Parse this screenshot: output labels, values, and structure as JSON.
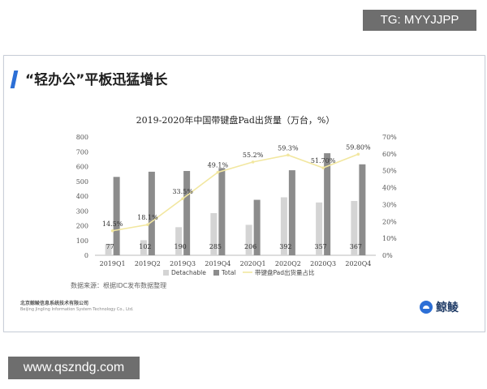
{
  "overlay": {
    "top_tag": "TG: MYYJJPP",
    "bottom_tag": "www.qszndg.com"
  },
  "slide": {
    "title": "“轻办公”平板迅猛增长",
    "source": "数据来源：根据IDC发布数据整理",
    "company_cn": "北京鲸鲮信息系统技术有限公司",
    "company_en": "Beijing Jingling Information System Technology Co., Ltd.",
    "logo_text": "鲸鲮"
  },
  "colors": {
    "detachable": "#d4d4d4",
    "total": "#8c8c8c",
    "share_line": "#f2e7a0",
    "accent": "#2c6fd6"
  },
  "chart_data": {
    "type": "bar",
    "title": "2019-2020年中国带键盘Pad出货量（万台，%）",
    "categories": [
      "2019Q1",
      "2019Q2",
      "2019Q3",
      "2019Q4",
      "2020Q1",
      "2020Q2",
      "2020Q3",
      "2020Q4"
    ],
    "series": [
      {
        "name": "Detachable",
        "kind": "bar",
        "values": [
          77,
          102,
          190,
          285,
          206,
          392,
          357,
          367
        ]
      },
      {
        "name": "Total",
        "kind": "bar",
        "values": [
          530,
          565,
          570,
          590,
          375,
          575,
          690,
          615
        ]
      },
      {
        "name": "带键盘Pad出货量占比",
        "kind": "line",
        "axis": "right",
        "values": [
          14.5,
          18.1,
          33.5,
          49.1,
          55.2,
          59.3,
          51.7,
          59.8
        ],
        "labels": [
          "14.5%",
          "18.1%",
          "33.5%",
          "49.1%",
          "55.2%",
          "59.3%",
          "51.70%",
          "59.80%"
        ]
      }
    ],
    "detachable_labels": [
      "77",
      "102",
      "190",
      "285",
      "206",
      "392",
      "357",
      "367"
    ],
    "ylim": [
      0,
      800
    ],
    "yticks": [
      "0",
      "100",
      "200",
      "300",
      "400",
      "500",
      "600",
      "700",
      "800"
    ],
    "y2lim": [
      0,
      70
    ],
    "y2ticks": [
      "0%",
      "10%",
      "20%",
      "30%",
      "40%",
      "50%",
      "60%",
      "70%"
    ],
    "legend": "bottom",
    "grid": false
  }
}
